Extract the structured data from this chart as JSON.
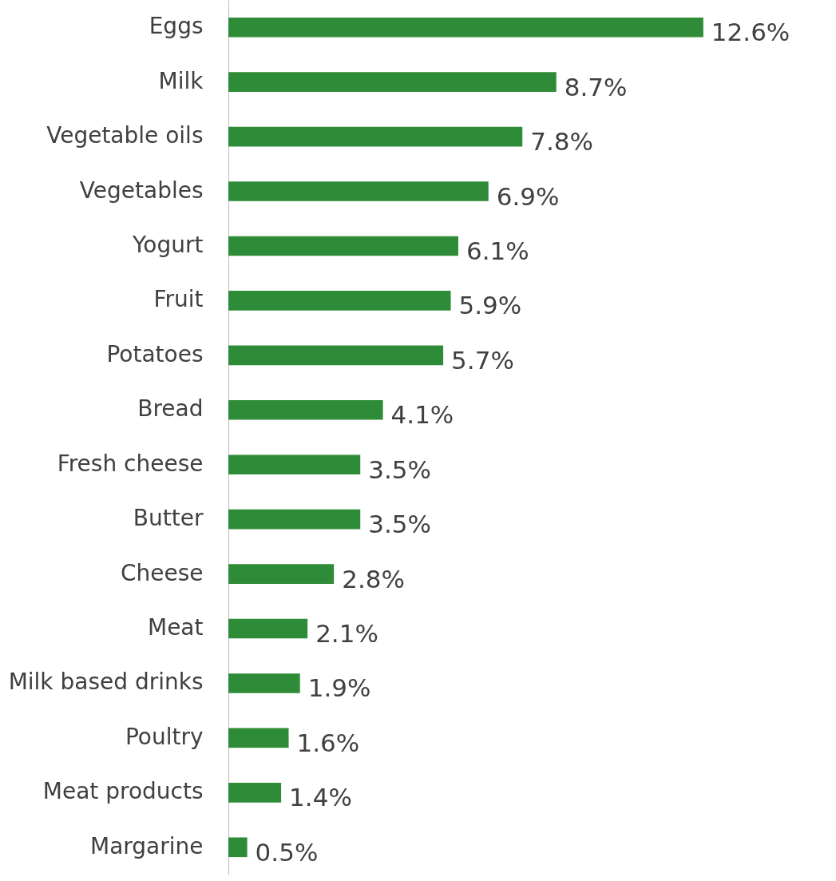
{
  "chart_data": {
    "type": "bar",
    "orientation": "horizontal",
    "categories": [
      "Eggs",
      "Milk",
      "Vegetable oils",
      "Vegetables",
      "Yogurt",
      "Fruit",
      "Potatoes",
      "Bread",
      "Fresh cheese",
      "Butter",
      "Cheese",
      "Meat",
      "Milk based drinks",
      "Poultry",
      "Meat products",
      "Margarine"
    ],
    "values": [
      12.6,
      8.7,
      7.8,
      6.9,
      6.1,
      5.9,
      5.7,
      4.1,
      3.5,
      3.5,
      2.8,
      2.1,
      1.9,
      1.6,
      1.4,
      0.5
    ],
    "value_labels": [
      "12.6%",
      "8.7%",
      "7.8%",
      "6.9%",
      "6.1%",
      "5.9%",
      "5.7%",
      "4.1%",
      "3.5%",
      "3.5%",
      "2.8%",
      "2.1%",
      "1.9%",
      "1.6%",
      "1.4%",
      "0.5%"
    ],
    "color": "#2e8b37",
    "grid": false
  }
}
